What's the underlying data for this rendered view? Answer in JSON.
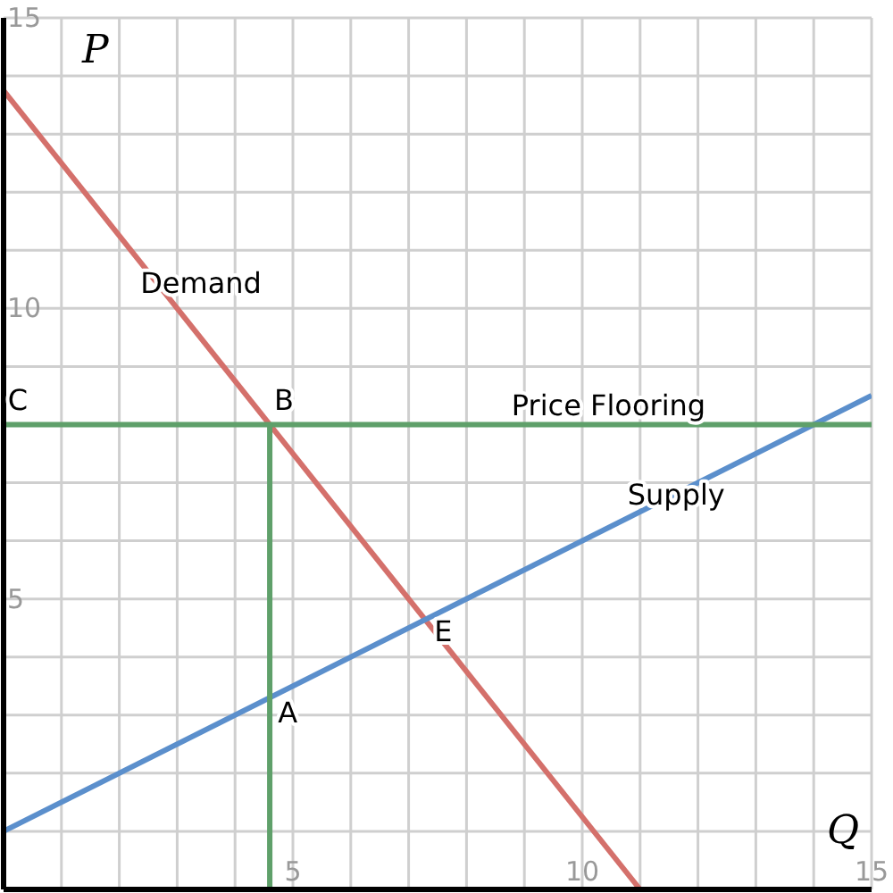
{
  "chart_data": {
    "type": "line",
    "xlabel": "Q",
    "ylabel": "P",
    "xlim": [
      0,
      15
    ],
    "ylim": [
      0,
      15
    ],
    "xticks": [
      {
        "value": 0,
        "label": null
      },
      {
        "value": 1,
        "label": null
      },
      {
        "value": 2,
        "label": null
      },
      {
        "value": 3,
        "label": null
      },
      {
        "value": 4,
        "label": null
      },
      5,
      {
        "value": 6,
        "label": null
      },
      {
        "value": 7,
        "label": null
      },
      {
        "value": 8,
        "label": null
      },
      {
        "value": 9,
        "label": null
      },
      10,
      {
        "value": 11,
        "label": null
      },
      {
        "value": 12,
        "label": null
      },
      {
        "value": 13,
        "label": null
      },
      {
        "value": 14,
        "label": null
      },
      15
    ],
    "yticks": [
      {
        "value": 0,
        "label": null
      },
      {
        "value": 1,
        "label": null
      },
      {
        "value": 2,
        "label": null
      },
      {
        "value": 3,
        "label": null
      },
      {
        "value": 4,
        "label": null
      },
      5,
      {
        "value": 6,
        "label": null
      },
      {
        "value": 7,
        "label": null
      },
      {
        "value": 8,
        "label": null
      },
      {
        "value": 9,
        "label": null
      },
      10,
      {
        "value": 11,
        "label": null
      },
      {
        "value": 12,
        "label": null
      },
      {
        "value": 13,
        "label": null
      },
      {
        "value": 14,
        "label": null
      },
      15
    ],
    "grid": true,
    "marker": "none",
    "line_style": "solid",
    "series": [
      {
        "name": "Demand",
        "color": "#d4706b",
        "x": [
          0,
          11
        ],
        "values": [
          13.75,
          0
        ]
      },
      {
        "name": "Supply",
        "color": "#5b8fcc",
        "x": [
          0,
          15
        ],
        "values": [
          1,
          8.5
        ]
      },
      {
        "name": "Price Flooring",
        "color": "#5fa06a",
        "x": [
          0,
          15
        ],
        "values": [
          8,
          8
        ]
      },
      {
        "color": "#5fa06a",
        "x": [
          4.6,
          4.6
        ],
        "values": [
          0,
          8
        ]
      }
    ],
    "annotations": [
      {
        "text": "C",
        "x": 0,
        "y": 8
      },
      {
        "text": "B",
        "x": 4.6,
        "y": 8
      },
      {
        "text": "E",
        "x": 7.29,
        "y": 4.64
      },
      {
        "text": "A",
        "x": 4.6,
        "y": 3.3
      }
    ]
  }
}
